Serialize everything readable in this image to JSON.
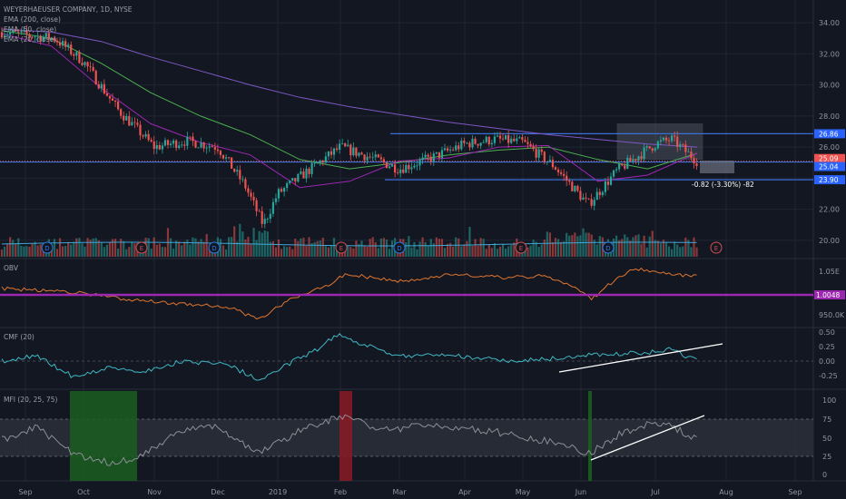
{
  "legend": {
    "symbol": "WEYERHAEUSER COMPANY, 1D, NYSE",
    "ema200": "EMA (200, close)",
    "ema50": "EMA (50, close)",
    "ema20": "EMA (20, close)"
  },
  "colors": {
    "background": "#131722",
    "up": "#26a69a",
    "down": "#ef5350",
    "ema200": "#7e57c2",
    "ema50": "#4caf50",
    "ema20": "#9c27b0",
    "hline": "#3a6fd8",
    "obv": "#e0762f",
    "obv_ref": "#9c27b0",
    "cmf": "#3fb7c4",
    "mfi": "#8d8f96",
    "trend": "#ffffff"
  },
  "price_levels": [
    {
      "value": "26.86",
      "color": "#2962ff"
    },
    {
      "value": "25.09",
      "color": "#ef5350"
    },
    {
      "value": "25.04",
      "color": "#2962ff"
    },
    {
      "value": "23.90",
      "color": "#2962ff"
    }
  ],
  "measure": {
    "text": "-0.82 (-3.30%) -82"
  },
  "panes": {
    "obv": {
      "label": "OBV",
      "ref_value": "1.0048",
      "ticks": [
        "1.05E",
        "950.0K"
      ]
    },
    "cmf": {
      "label": "CMF (20)",
      "ticks": [
        "0.50",
        "0.25",
        "0.00",
        "-0.25"
      ]
    },
    "mfi": {
      "label": "MFI (20, 25, 75)",
      "ticks": [
        "100",
        "75",
        "50",
        "25",
        "0"
      ]
    }
  },
  "events": [
    {
      "label": "D",
      "kind": "dividend"
    },
    {
      "label": "E",
      "kind": "earnings"
    },
    {
      "label": "D",
      "kind": "dividend"
    },
    {
      "label": "E",
      "kind": "earnings"
    },
    {
      "label": "D",
      "kind": "dividend"
    },
    {
      "label": "E",
      "kind": "earnings"
    },
    {
      "label": "D",
      "kind": "dividend"
    },
    {
      "label": "E",
      "kind": "earnings"
    }
  ],
  "chart_data": {
    "type": "candlestick",
    "symbol": "WEYERHAEUSER COMPANY",
    "interval": "1D",
    "exchange": "NYSE",
    "x_labels": [
      "Sep",
      "Oct",
      "Nov",
      "Dec",
      "2019",
      "Feb",
      "Mar",
      "Apr",
      "May",
      "Jun",
      "Jul",
      "Aug",
      "Sep"
    ],
    "y_ticks": [
      "34.00",
      "32.00",
      "30.00",
      "28.00",
      "26.00",
      "22.00",
      "20.00"
    ],
    "ylim": [
      19.0,
      35.0
    ],
    "close_points": [
      {
        "x": "Sep",
        "y": 33.4
      },
      {
        "x": "mid-Sep",
        "y": 33.0
      },
      {
        "x": "Oct",
        "y": 31.5
      },
      {
        "x": "mid-Oct",
        "y": 28.4
      },
      {
        "x": "Nov",
        "y": 26.0
      },
      {
        "x": "mid-Nov",
        "y": 26.4
      },
      {
        "x": "Dec",
        "y": 26.0
      },
      {
        "x": "mid-Dec",
        "y": 23.5
      },
      {
        "x": "late-Dec",
        "y": 21.0
      },
      {
        "x": "2019",
        "y": 23.0
      },
      {
        "x": "mid-Jan",
        "y": 24.5
      },
      {
        "x": "Feb",
        "y": 26.0
      },
      {
        "x": "mid-Feb",
        "y": 25.4
      },
      {
        "x": "Mar",
        "y": 24.6
      },
      {
        "x": "mid-Mar",
        "y": 25.3
      },
      {
        "x": "Apr",
        "y": 26.2
      },
      {
        "x": "mid-Apr",
        "y": 26.5
      },
      {
        "x": "May",
        "y": 26.3
      },
      {
        "x": "mid-May",
        "y": 24.8
      },
      {
        "x": "Jun",
        "y": 22.3
      },
      {
        "x": "mid-Jun",
        "y": 24.5
      },
      {
        "x": "Jul",
        "y": 26.2
      },
      {
        "x": "mid-Jul",
        "y": 26.5
      },
      {
        "x": "late-Jul",
        "y": 25.1
      }
    ],
    "series": [
      {
        "name": "EMA (200, close)",
        "values": [
          33.6,
          33.4,
          32.8,
          31.8,
          30.9,
          30.0,
          29.2,
          28.6,
          28.1,
          27.6,
          27.2,
          26.8,
          26.5,
          26.2,
          26.0
        ]
      },
      {
        "name": "EMA (50, close)",
        "values": [
          33.5,
          33.0,
          31.4,
          29.5,
          28.0,
          26.8,
          25.2,
          24.6,
          25.0,
          25.5,
          25.8,
          26.0,
          25.2,
          24.6,
          25.6
        ]
      },
      {
        "name": "EMA (20, close)",
        "values": [
          33.3,
          32.5,
          29.8,
          27.5,
          26.3,
          25.5,
          23.4,
          23.8,
          25.1,
          25.3,
          26.0,
          26.1,
          23.8,
          24.2,
          25.6
        ]
      }
    ],
    "horizontal_lines": [
      26.86,
      25.04,
      23.9
    ],
    "last_price": 25.09,
    "obv_reference": 1.0048,
    "cmf_range": [
      -0.25,
      0.5
    ],
    "mfi_levels": [
      25,
      75
    ],
    "grid": true,
    "legend_position": "top-left"
  }
}
